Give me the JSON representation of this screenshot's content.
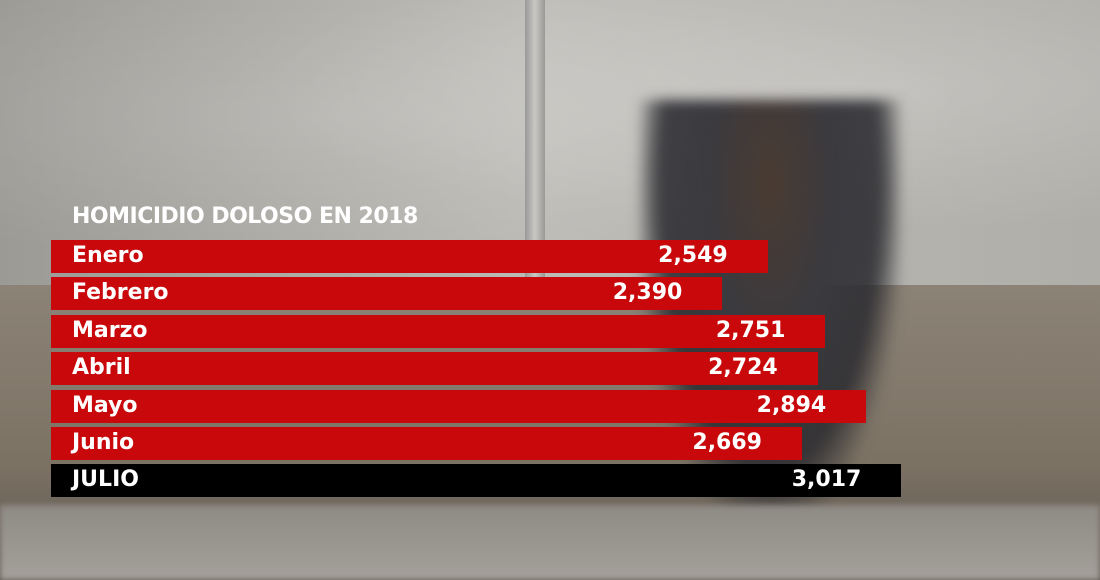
{
  "chart_data": {
    "type": "bar",
    "orientation": "horizontal",
    "title": "HOMICIDIO DOLOSO EN 2018",
    "categories": [
      "Enero",
      "Febrero",
      "Marzo",
      "Abril",
      "Mayo",
      "Junio",
      "JULIO"
    ],
    "values": [
      2549,
      2390,
      2751,
      2724,
      2894,
      2669,
      3017
    ],
    "value_labels": [
      "2,549",
      "2,390",
      "2,751",
      "2,724",
      "2,894",
      "2,669",
      "3,017"
    ],
    "colors": {
      "bar": "#c8080a",
      "highlight": "#000000",
      "text": "#ffffff"
    },
    "highlight_index": 6,
    "grid": false
  }
}
